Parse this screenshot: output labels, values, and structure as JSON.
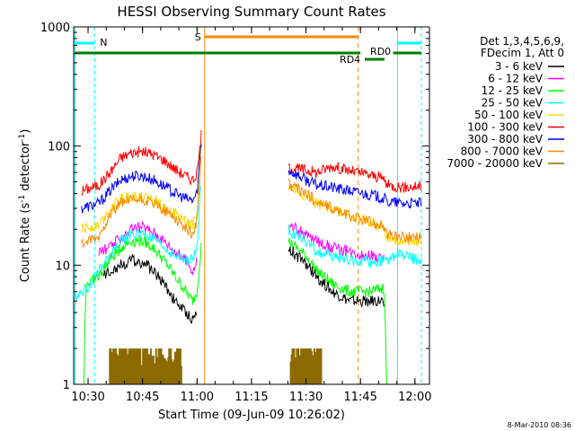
{
  "chart_data": {
    "type": "line",
    "title": "HESSI Observing Summary Count Rates",
    "xlabel": "Start Time (09-Jun-09 10:26:02)",
    "ylabel_main": "Count Rate (s",
    "ylabel_sup1": "-1",
    "ylabel_mid": " detector",
    "ylabel_sup2": "-1",
    "ylabel_end": ")",
    "yscale": "log",
    "ylim": [
      1,
      1000
    ],
    "xlim": [
      "10:26:02",
      "12:04:00"
    ],
    "x_ticks": [
      "10:30",
      "10:45",
      "11:00",
      "11:15",
      "11:30",
      "11:45",
      "12:00"
    ],
    "y_ticks": [
      "1",
      "10",
      "100",
      "1000"
    ],
    "timestamp": "8-Mar-2010 08:36",
    "legend": {
      "header1": "Det 1,3,4,5,6,9,",
      "header2": "FDecim 1, Att 0",
      "entries": [
        {
          "label": "3 - 6 keV",
          "color": "#000000"
        },
        {
          "label": "6 - 12 keV",
          "color": "#ff00ff"
        },
        {
          "label": "12 - 25 keV",
          "color": "#00ff00"
        },
        {
          "label": "25 - 50 keV",
          "color": "#00ffff"
        },
        {
          "label": "50 - 100 keV",
          "color": "#ffd700"
        },
        {
          "label": "100 - 300 keV",
          "color": "#ff0000"
        },
        {
          "label": "300 - 800 keV",
          "color": "#0000ff"
        },
        {
          "label": "800 - 7000 keV",
          "color": "#ff8800"
        },
        {
          "label": "7000 - 20000 keV",
          "color": "#8b6b00"
        }
      ]
    },
    "flag_labels": {
      "night": "N",
      "saa": "S",
      "rd0": "RD0",
      "rd4": "RD4"
    },
    "series": [
      {
        "key": "red",
        "color": "#ff0000",
        "segments": [
          [
            [
              10.47,
              42
            ],
            [
              10.55,
              47
            ],
            [
              10.6,
              60
            ],
            [
              10.65,
              80
            ],
            [
              10.7,
              88
            ],
            [
              10.75,
              90
            ],
            [
              10.8,
              85
            ],
            [
              10.85,
              76
            ],
            [
              10.9,
              64
            ],
            [
              10.95,
              56
            ],
            [
              10.98,
              52
            ],
            [
              11.0,
              58
            ],
            [
              11.02,
              125
            ]
          ],
          [
            [
              11.42,
              66
            ],
            [
              11.5,
              63
            ],
            [
              11.55,
              60
            ],
            [
              11.62,
              68
            ],
            [
              11.7,
              62
            ],
            [
              11.8,
              57
            ],
            [
              11.86,
              53
            ],
            [
              11.87,
              47
            ],
            [
              11.95,
              45
            ],
            [
              12.03,
              46
            ]
          ]
        ]
      },
      {
        "key": "blue",
        "color": "#0000ff",
        "segments": [
          [
            [
              10.47,
              30
            ],
            [
              10.55,
              33
            ],
            [
              10.6,
              42
            ],
            [
              10.65,
              52
            ],
            [
              10.7,
              56
            ],
            [
              10.75,
              56
            ],
            [
              10.8,
              52
            ],
            [
              10.85,
              46
            ],
            [
              10.9,
              40
            ],
            [
              10.95,
              36
            ],
            [
              10.98,
              35
            ],
            [
              11.0,
              40
            ],
            [
              11.02,
              110
            ]
          ],
          [
            [
              11.42,
              63
            ],
            [
              11.5,
              52
            ],
            [
              11.55,
              47
            ],
            [
              11.62,
              45
            ],
            [
              11.7,
              42
            ],
            [
              11.8,
              39
            ],
            [
              11.86,
              36
            ],
            [
              11.87,
              34
            ],
            [
              11.95,
              33
            ],
            [
              12.03,
              33
            ]
          ]
        ]
      },
      {
        "key": "yellow",
        "color": "#ffd700",
        "segments": [
          [
            [
              10.47,
              20
            ],
            [
              10.55,
              22
            ],
            [
              10.6,
              29
            ],
            [
              10.65,
              36
            ],
            [
              10.7,
              38
            ],
            [
              10.75,
              38
            ],
            [
              10.8,
              35
            ],
            [
              10.85,
              31
            ],
            [
              10.9,
              27
            ],
            [
              10.95,
              23
            ],
            [
              10.98,
              22
            ],
            [
              11.0,
              26
            ],
            [
              11.02,
              95
            ]
          ],
          [
            [
              11.42,
              45
            ],
            [
              11.5,
              38
            ],
            [
              11.55,
              33
            ],
            [
              11.62,
              30
            ],
            [
              11.7,
              26
            ],
            [
              11.8,
              23
            ],
            [
              11.86,
              20
            ],
            [
              11.87,
              17
            ],
            [
              11.95,
              16
            ],
            [
              12.03,
              16
            ]
          ]
        ]
      },
      {
        "key": "orange",
        "color": "#ff8800",
        "segments": [
          [
            [
              10.47,
              15
            ],
            [
              10.55,
              17
            ],
            [
              10.6,
              27
            ],
            [
              10.65,
              33
            ],
            [
              10.7,
              35
            ],
            [
              10.75,
              35
            ],
            [
              10.8,
              33
            ],
            [
              10.85,
              29
            ],
            [
              10.9,
              25
            ],
            [
              10.95,
              20
            ],
            [
              10.98,
              18
            ],
            [
              11.0,
              24
            ],
            [
              11.02,
              90
            ]
          ],
          [
            [
              11.42,
              48
            ],
            [
              11.5,
              40
            ],
            [
              11.55,
              34
            ],
            [
              11.62,
              30
            ],
            [
              11.7,
              26
            ],
            [
              11.8,
              23
            ],
            [
              11.86,
              21
            ],
            [
              11.87,
              18
            ],
            [
              11.95,
              17
            ],
            [
              12.03,
              17
            ]
          ]
        ]
      },
      {
        "key": "magenta",
        "color": "#ff00ff",
        "segments": [
          [
            [
              10.55,
              13
            ],
            [
              10.6,
              14
            ],
            [
              10.65,
              17
            ],
            [
              10.7,
              20
            ],
            [
              10.75,
              21
            ],
            [
              10.8,
              19
            ],
            [
              10.85,
              16
            ],
            [
              10.9,
              13
            ],
            [
              10.95,
              11
            ],
            [
              10.98,
              9
            ],
            [
              11.0,
              11
            ]
          ],
          [
            [
              11.42,
              22
            ],
            [
              11.5,
              18
            ],
            [
              11.55,
              16
            ],
            [
              11.62,
              14
            ],
            [
              11.7,
              13
            ],
            [
              11.8,
              12
            ],
            [
              11.86,
              11
            ]
          ]
        ]
      },
      {
        "key": "cyan",
        "color": "#00ffff",
        "segments": [
          [
            [
              10.44,
              5.5
            ],
            [
              10.5,
              6.5
            ],
            [
              10.55,
              9
            ],
            [
              10.6,
              12
            ],
            [
              10.65,
              16
            ],
            [
              10.7,
              18
            ],
            [
              10.75,
              18.5
            ],
            [
              10.8,
              16.5
            ],
            [
              10.85,
              14
            ],
            [
              10.9,
              12
            ],
            [
              10.95,
              11
            ],
            [
              10.98,
              11
            ],
            [
              11.0,
              14
            ],
            [
              11.02,
              60
            ]
          ],
          [
            [
              11.42,
              20
            ],
            [
              11.5,
              16
            ],
            [
              11.55,
              13
            ],
            [
              11.62,
              12
            ],
            [
              11.7,
              11
            ],
            [
              11.8,
              10.5
            ],
            [
              11.86,
              11
            ],
            [
              11.87,
              10.5
            ],
            [
              11.9,
              12
            ],
            [
              11.95,
              12
            ],
            [
              12.03,
              11
            ]
          ]
        ]
      },
      {
        "key": "green",
        "color": "#00ff00",
        "segments": [
          [
            [
              10.47,
              1
            ],
            [
              10.48,
              1
            ],
            [
              10.49,
              7
            ],
            [
              10.55,
              8
            ],
            [
              10.6,
              11
            ],
            [
              10.65,
              14
            ],
            [
              10.7,
              16
            ],
            [
              10.75,
              16
            ],
            [
              10.8,
              14
            ],
            [
              10.85,
              11
            ],
            [
              10.9,
              8
            ],
            [
              10.95,
              6
            ],
            [
              10.98,
              5
            ],
            [
              11.0,
              6
            ],
            [
              11.02,
              15
            ]
          ],
          [
            [
              11.42,
              16
            ],
            [
              11.5,
              12
            ],
            [
              11.55,
              9
            ],
            [
              11.62,
              7
            ],
            [
              11.7,
              6
            ],
            [
              11.8,
              6
            ],
            [
              11.86,
              6.5
            ],
            [
              11.87,
              1
            ],
            [
              11.88,
              1
            ]
          ]
        ]
      },
      {
        "key": "black",
        "color": "#000000",
        "segments": [
          [
            [
              10.57,
              8
            ],
            [
              10.6,
              9
            ],
            [
              10.65,
              10
            ],
            [
              10.7,
              11
            ],
            [
              10.75,
              10.5
            ],
            [
              10.8,
              9
            ],
            [
              10.85,
              7
            ],
            [
              10.9,
              5
            ],
            [
              10.95,
              4
            ],
            [
              10.98,
              3.5
            ],
            [
              11.0,
              4
            ]
          ],
          [
            [
              11.42,
              14
            ],
            [
              11.48,
              11
            ],
            [
              11.55,
              8
            ],
            [
              11.62,
              6
            ],
            [
              11.7,
              5
            ],
            [
              11.8,
              5
            ],
            [
              11.86,
              5
            ]
          ]
        ]
      }
    ],
    "brown_blocks": [
      [
        10.6,
        10.93
      ],
      [
        11.43,
        11.57
      ]
    ],
    "flags": {
      "night_cyan": [
        [
          10.44,
          10.53
        ],
        [
          11.92,
          12.03
        ]
      ],
      "night_cyan_lines": [
        10.53,
        11.92,
        12.03
      ],
      "saa_orange": [
        11.035,
        11.74
      ],
      "saa_orange_dashed": 11.74,
      "green_rd": [
        [
          10.44,
          11.75
        ],
        [
          11.77,
          11.86
        ],
        [
          11.9,
          12.03
        ]
      ]
    }
  }
}
